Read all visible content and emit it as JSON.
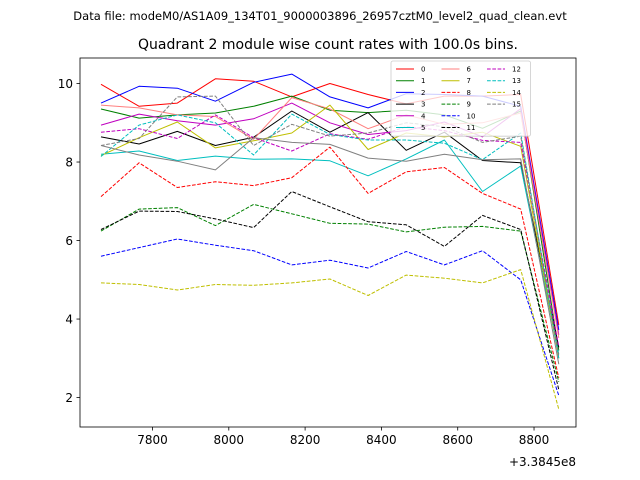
{
  "chart_data": {
    "type": "line",
    "suptitle": "Data file: modeM0/AS1A09_134T01_9000003896_26957cztM0_level2_quad_clean.evt",
    "title": "Quadrant 2 module wise count rates with 100.0s bins.",
    "xlabel": "",
    "ylabel": "",
    "x_offset_label": "+3.3845e8",
    "x": [
      7665,
      7765,
      7865,
      7965,
      8065,
      8165,
      8265,
      8365,
      8465,
      8565,
      8665,
      8765,
      8865
    ],
    "xlim": [
      7610,
      8910
    ],
    "ylim": [
      1.25,
      10.65
    ],
    "xticks": [
      7800,
      8000,
      8200,
      8400,
      8600,
      8800
    ],
    "yticks": [
      2,
      4,
      6,
      8,
      10
    ],
    "legend_position": "top-right",
    "series": [
      {
        "name": "0",
        "color": "#ff0000",
        "dash": "solid",
        "values": [
          9.98,
          9.42,
          9.5,
          10.12,
          10.06,
          9.66,
          10.0,
          9.72,
          9.48,
          9.68,
          9.68,
          9.72,
          3.85
        ]
      },
      {
        "name": "1",
        "color": "#008000",
        "dash": "solid",
        "values": [
          9.35,
          9.12,
          9.2,
          9.25,
          9.42,
          9.68,
          9.32,
          9.26,
          9.32,
          9.2,
          8.86,
          9.3,
          3.2
        ]
      },
      {
        "name": "2",
        "color": "#0000ff",
        "dash": "solid",
        "values": [
          9.5,
          9.93,
          9.88,
          9.55,
          10.03,
          10.24,
          9.66,
          9.38,
          9.74,
          9.72,
          9.68,
          9.42,
          3.72
        ]
      },
      {
        "name": "3",
        "color": "#000000",
        "dash": "solid",
        "values": [
          8.64,
          8.46,
          8.78,
          8.42,
          8.63,
          9.3,
          8.76,
          9.26,
          8.3,
          8.76,
          8.04,
          7.98,
          3.28
        ]
      },
      {
        "name": "4",
        "color": "#bf00bf",
        "dash": "solid",
        "values": [
          8.94,
          9.22,
          9.05,
          8.94,
          9.1,
          9.5,
          9.0,
          8.7,
          8.8,
          9.02,
          8.64,
          9.36,
          3.6
        ]
      },
      {
        "name": "5",
        "color": "#00bfbf",
        "dash": "solid",
        "values": [
          8.2,
          8.28,
          8.04,
          8.15,
          8.07,
          8.08,
          8.03,
          7.65,
          8.08,
          8.56,
          7.25,
          7.9,
          3.1
        ]
      },
      {
        "name": "6",
        "color": "#ff7f7f",
        "dash": "solid",
        "values": [
          9.45,
          9.38,
          9.2,
          9.16,
          8.58,
          9.64,
          9.35,
          8.85,
          9.2,
          8.96,
          9.0,
          9.25,
          3.52
        ]
      },
      {
        "name": "7",
        "color": "#bfbf00",
        "dash": "solid",
        "values": [
          8.16,
          8.62,
          9.02,
          8.36,
          8.54,
          8.74,
          9.45,
          8.32,
          8.74,
          8.64,
          8.76,
          8.4,
          3.0
        ]
      },
      {
        "name": "8",
        "color": "#ff0000",
        "dash": "dashed",
        "values": [
          7.12,
          7.98,
          7.35,
          7.5,
          7.4,
          7.6,
          8.38,
          7.2,
          7.75,
          7.86,
          7.2,
          6.8,
          2.5
        ]
      },
      {
        "name": "9",
        "color": "#008000",
        "dash": "dashed",
        "values": [
          6.24,
          6.8,
          6.84,
          6.38,
          6.92,
          6.68,
          6.44,
          6.42,
          6.22,
          6.34,
          6.36,
          6.24,
          2.4
        ]
      },
      {
        "name": "10",
        "color": "#0000ff",
        "dash": "dashed",
        "values": [
          5.6,
          5.82,
          6.04,
          5.88,
          5.74,
          5.38,
          5.5,
          5.3,
          5.72,
          5.38,
          5.74,
          5.0,
          2.05
        ]
      },
      {
        "name": "11",
        "color": "#000000",
        "dash": "dashed",
        "values": [
          6.28,
          6.75,
          6.74,
          6.55,
          6.33,
          7.25,
          6.86,
          6.48,
          6.4,
          5.85,
          6.64,
          6.28,
          2.2
        ]
      },
      {
        "name": "12",
        "color": "#bf00bf",
        "dash": "dashed",
        "values": [
          8.76,
          8.85,
          8.6,
          9.2,
          8.62,
          8.28,
          8.72,
          8.58,
          8.9,
          8.8,
          8.55,
          8.5,
          3.3
        ]
      },
      {
        "name": "13",
        "color": "#00bfbf",
        "dash": "dashed",
        "values": [
          8.14,
          8.94,
          9.2,
          9.0,
          8.18,
          9.22,
          8.7,
          8.56,
          8.56,
          8.48,
          8.06,
          8.74,
          3.0
        ]
      },
      {
        "name": "14",
        "color": "#bfbf00",
        "dash": "dashed",
        "values": [
          4.92,
          4.88,
          4.74,
          4.88,
          4.86,
          4.92,
          5.02,
          4.6,
          5.12,
          5.04,
          4.92,
          5.26,
          1.7
        ]
      },
      {
        "name": "15",
        "color": "#7f7f7f",
        "dash": "dashed",
        "values": [
          8.42,
          8.6,
          9.66,
          9.68,
          8.42,
          8.96,
          8.66,
          8.74,
          9.0,
          8.9,
          8.5,
          8.66,
          3.05
        ]
      },
      {
        "name": "",
        "color": "#808080",
        "dash": "solid",
        "values": [
          8.42,
          8.18,
          8.02,
          7.8,
          8.62,
          8.5,
          8.45,
          8.1,
          8.02,
          8.2,
          8.06,
          8.08,
          2.85
        ]
      }
    ]
  }
}
